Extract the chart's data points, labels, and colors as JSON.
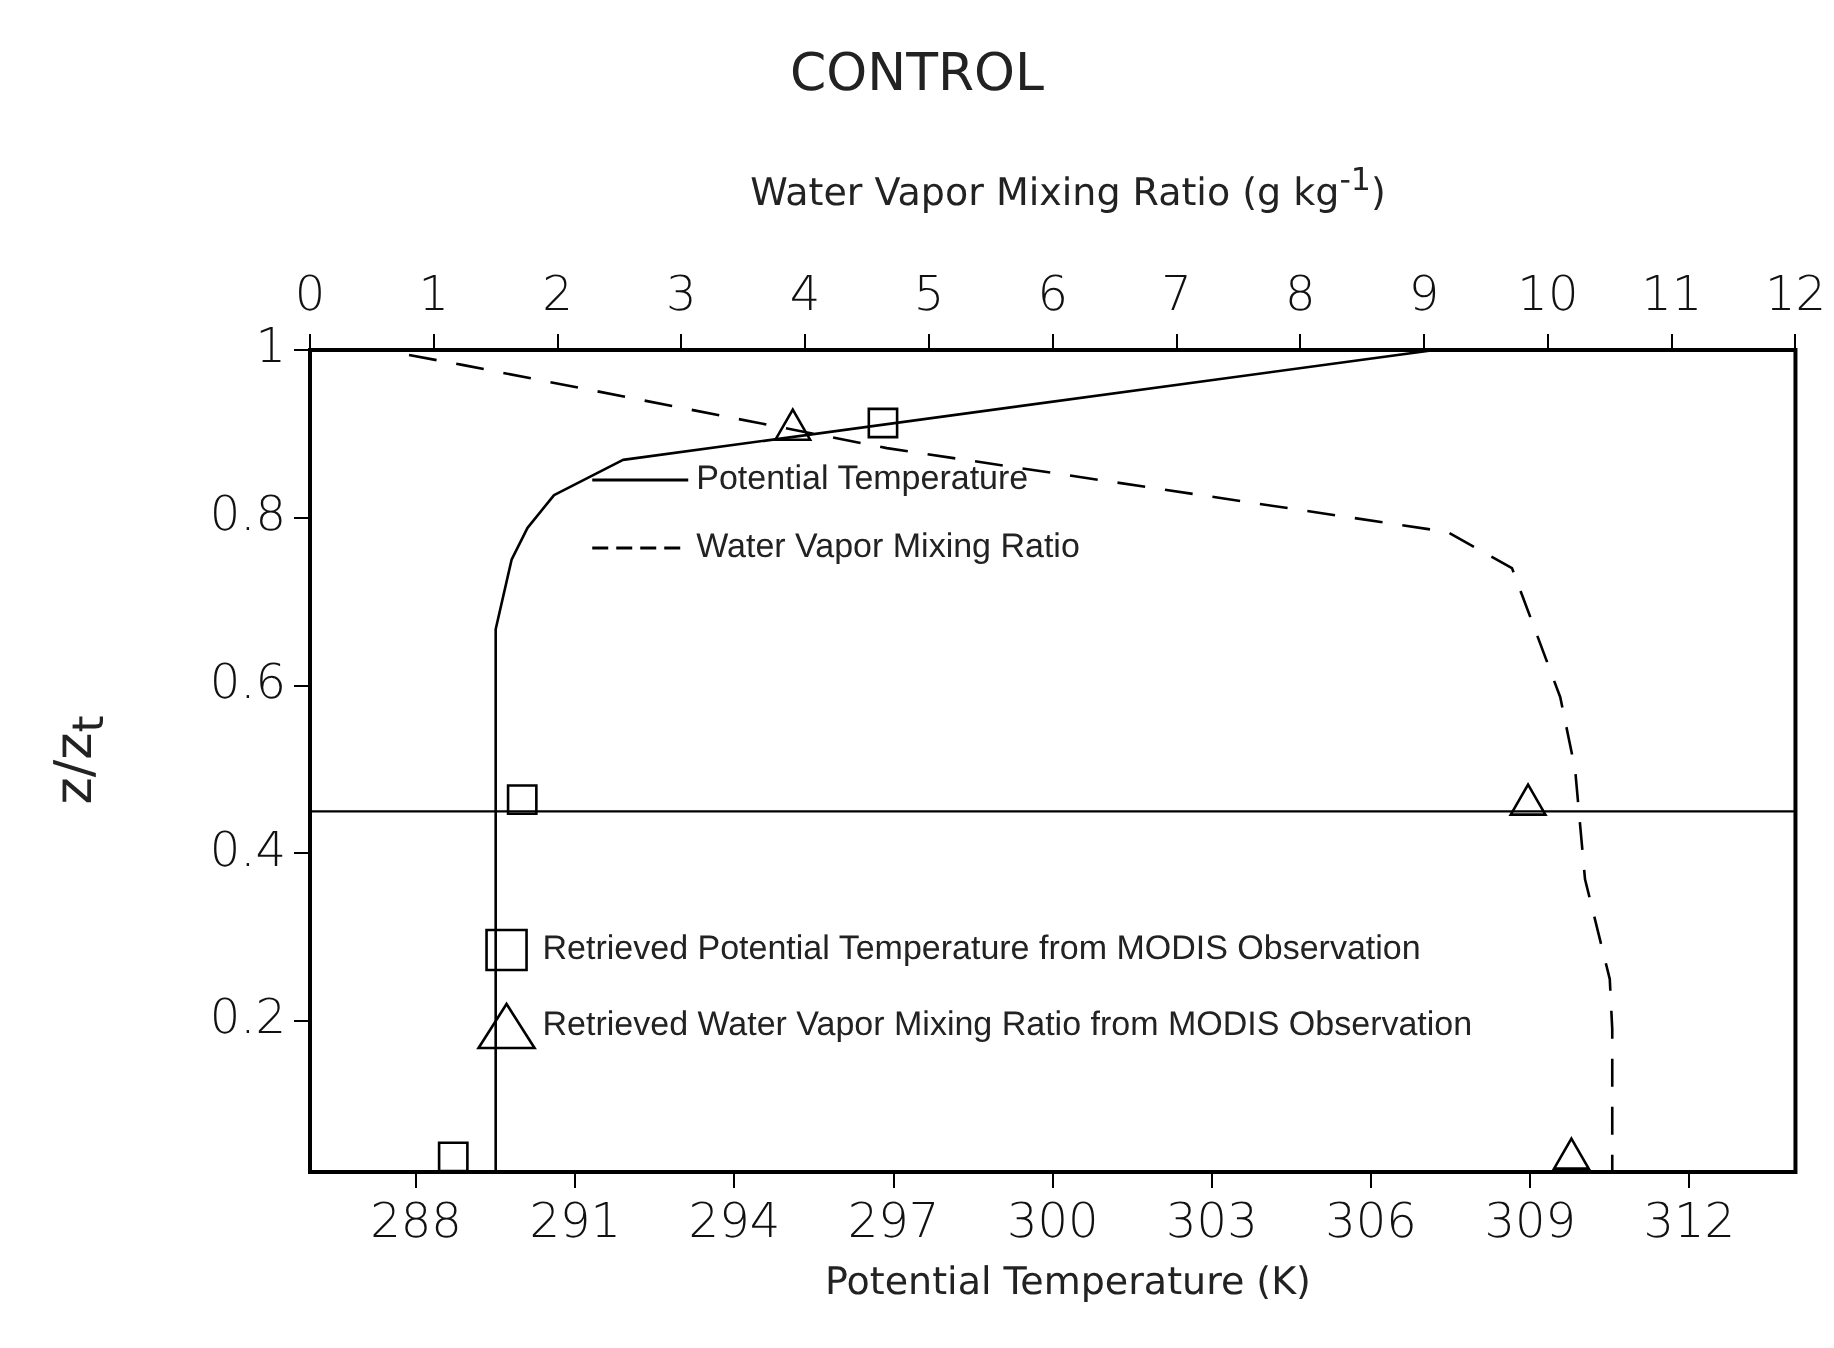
{
  "chart_data": {
    "type": "line",
    "title": "CONTROL",
    "x2label": "Water Vapor Mixing Ratio (g kg$^{-1}$)",
    "xlabel": "Potential Temperature (K)",
    "ylabel": "z/z$_{t}$",
    "xlim": [
      286,
      314
    ],
    "xticks": [
      288,
      291,
      294,
      297,
      300,
      303,
      306,
      309,
      312
    ],
    "x2lim": [
      0,
      12
    ],
    "x2ticks": [
      0,
      1,
      2,
      3,
      4,
      5,
      6,
      7,
      8,
      9,
      10,
      11,
      12
    ],
    "ylim": [
      0.02,
      1
    ],
    "yticks": [
      0.2,
      0.4,
      0.6,
      0.8,
      1
    ],
    "grid": false,
    "legend": "left",
    "series": [
      {
        "name": "Potential Temperature",
        "color": "#000000",
        "line_style": "solid",
        "marker": "none",
        "x": [
          289.47,
          289.5,
          289.8,
          290.1,
          290.6,
          291.9,
          307.2
        ],
        "values": [
          0.02,
          0.667,
          0.75,
          0.788,
          0.827,
          0.869,
          1
        ]
      },
      {
        "name": "Water Vapor Mixing Ratio",
        "axis": "x2",
        "color": "#000000",
        "line_style": "dashed",
        "marker": "none",
        "x": [
          0.8,
          1.24,
          4.66,
          9.19,
          9.71,
          10.1,
          10.22,
          10.3,
          10.5,
          10.52,
          10.52
        ],
        "values": [
          0.994,
          0.982,
          0.883,
          0.783,
          0.74,
          0.586,
          0.5,
          0.369,
          0.25,
          0.19,
          0.02
        ]
      },
      {
        "name": "Retrieved Potential Temperature from MODIS Observation",
        "type": "scatter",
        "color": "#000000",
        "marker": "square",
        "x": [
          296.8,
          290.0,
          288.7
        ],
        "values": [
          0.913,
          0.464,
          0.038
        ]
      },
      {
        "name": "Retrieved Water Vapor Mixing Ratio from MODIS Observation",
        "type": "scatter",
        "axis": "x2",
        "color": "#000000",
        "marker": "triangle",
        "x": [
          3.9,
          9.84,
          10.19
        ],
        "values": [
          0.905,
          0.458,
          0.036
        ]
      }
    ],
    "ref_lines": [
      {
        "axis": "y",
        "value": 0.45,
        "color": "#000000",
        "line_style": "solid"
      }
    ]
  }
}
